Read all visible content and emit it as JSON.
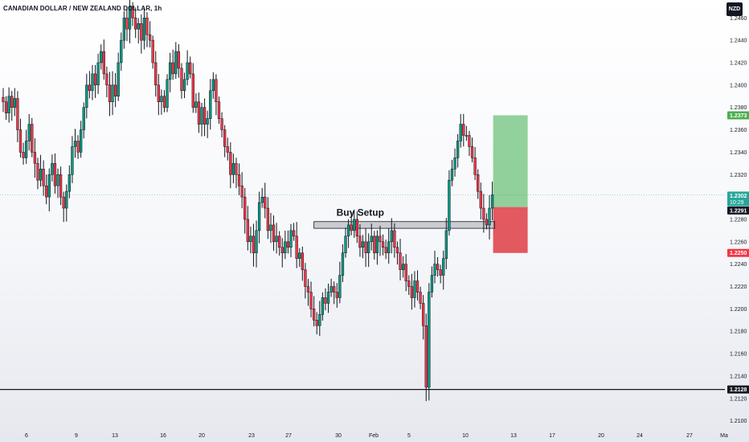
{
  "chart_title": "CANADIAN DOLLAR / NEW ZEALAND DOLLAR, 1h",
  "currency_label": "NZD",
  "annotation": "Buy Setup",
  "colors": {
    "up": "#089981",
    "down": "#f23645",
    "target_zone": "#7fc98a",
    "stop_zone": "#e0474f",
    "current_price": "#26a69a",
    "support_line": "#131722"
  },
  "chart_data": {
    "type": "candlestick",
    "title": "CANADIAN DOLLAR / NEW ZEALAND DOLLAR, 1h",
    "ylim": [
      1.2094,
      1.2476
    ],
    "y_ticks": [
      "1.2460",
      "1.2440",
      "1.2420",
      "1.2400",
      "1.2380",
      "1.2360",
      "1.2340",
      "1.2320",
      "1.2280",
      "1.2260",
      "1.2240",
      "1.2220",
      "1.2200",
      "1.2180",
      "1.2160",
      "1.2140",
      "1.2120",
      "1.2100"
    ],
    "x_ticks": [
      "6",
      "9",
      "13",
      "16",
      "20",
      "23",
      "27",
      "30",
      "Feb",
      "5",
      "10",
      "13",
      "17",
      "20",
      "24",
      "27",
      "Ma"
    ],
    "price_labels": {
      "target": "1.2373",
      "current": "1.2302",
      "countdown": "10:29",
      "entry": "1.2291",
      "stop": "1.2250",
      "support": "1.2128"
    },
    "levels": {
      "target": 1.2373,
      "current": 1.2302,
      "entry": 1.2291,
      "stop": 1.225,
      "support": 1.2128,
      "setup_zone": [
        1.2272,
        1.2278
      ]
    },
    "closes": [
      1.2385,
      1.2375,
      1.239,
      1.238,
      1.2388,
      1.236,
      1.234,
      1.2335,
      1.235,
      1.2365,
      1.234,
      1.233,
      1.2315,
      1.2325,
      1.231,
      1.23,
      1.232,
      1.233,
      1.231,
      1.232,
      1.23,
      1.229,
      1.2305,
      1.232,
      1.2345,
      1.235,
      1.234,
      1.236,
      1.238,
      1.24,
      1.2395,
      1.241,
      1.24,
      1.242,
      1.243,
      1.241,
      1.24,
      1.2385,
      1.24,
      1.239,
      1.242,
      1.244,
      1.246,
      1.245,
      1.247,
      1.246,
      1.245,
      1.2455,
      1.244,
      1.246,
      1.2445,
      1.244,
      1.242,
      1.24,
      1.2385,
      1.239,
      1.238,
      1.2405,
      1.242,
      1.241,
      1.243,
      1.2415,
      1.2395,
      1.2405,
      1.242,
      1.241,
      1.238,
      1.2385,
      1.2365,
      1.238,
      1.2365,
      1.237,
      1.2395,
      1.2405,
      1.2385,
      1.237,
      1.236,
      1.2345,
      1.234,
      1.232,
      1.233,
      1.232,
      1.231,
      1.23,
      1.228,
      1.226,
      1.2265,
      1.225,
      1.227,
      1.2295,
      1.23,
      1.229,
      1.227,
      1.2275,
      1.226,
      1.2265,
      1.2255,
      1.225,
      1.226,
      1.2255,
      1.227,
      1.2265,
      1.2245,
      1.225,
      1.2235,
      1.222,
      1.2215,
      1.22,
      1.219,
      1.2185,
      1.2195,
      1.221,
      1.2205,
      1.2215,
      1.222,
      1.2215,
      1.221,
      1.223,
      1.225,
      1.2265,
      1.2275,
      1.227,
      1.228,
      1.2265,
      1.2255,
      1.226,
      1.225,
      1.226,
      1.2265,
      1.225,
      1.2265,
      1.226,
      1.2255,
      1.225,
      1.226,
      1.227,
      1.2255,
      1.225,
      1.2235,
      1.224,
      1.2225,
      1.222,
      1.221,
      1.2225,
      1.2215,
      1.2205,
      1.2185,
      1.213,
      1.2215,
      1.223,
      1.224,
      1.2235,
      1.223,
      1.2245,
      1.227,
      1.2315,
      1.2325,
      1.2335,
      1.235,
      1.2365,
      1.2355,
      1.2355,
      1.2345,
      1.2335,
      1.232,
      1.2305,
      1.229,
      1.228,
      1.2275,
      1.229,
      1.2302
    ]
  }
}
